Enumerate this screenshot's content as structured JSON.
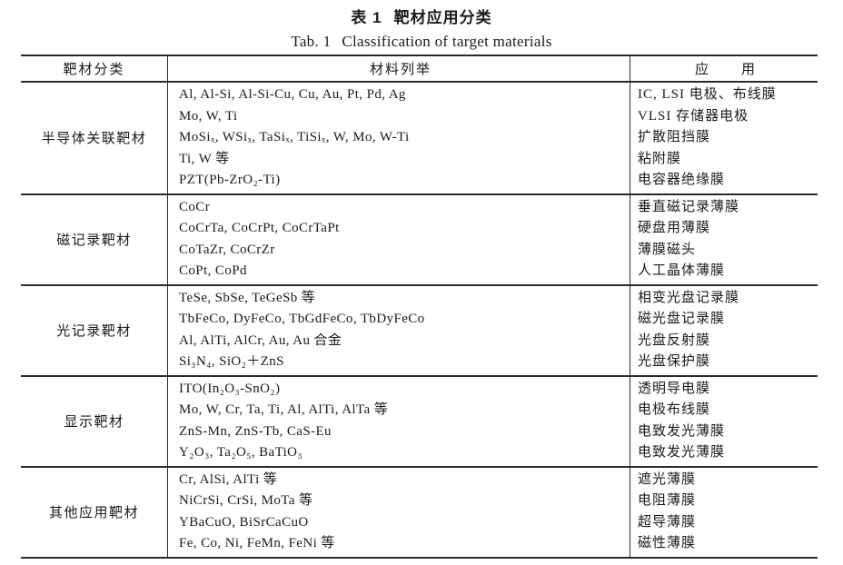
{
  "title": {
    "zh_label": "表 1",
    "zh_text": "靶材应用分类",
    "en_label": "Tab. 1",
    "en_text": "Classification of target materials"
  },
  "table": {
    "headers": {
      "category": "靶材分类",
      "materials": "材料列举",
      "application": "应　　用"
    },
    "sections": [
      {
        "category": "半导体关联靶材",
        "materials": [
          "Al, Al-Si, Al-Si-Cu, Cu, Au, Pt, Pd, Ag",
          "Mo, W, Ti",
          "MoSiₓ, WSiₓ, TaSiₓ, TiSiₓ, W, Mo, W-Ti",
          "Ti, W 等",
          "PZT(Pb-ZrO₂-Ti)"
        ],
        "applications": [
          "IC, LSI 电极、布线膜",
          "VLSI 存储器电极",
          "扩散阻挡膜",
          "粘附膜",
          "电容器绝缘膜"
        ]
      },
      {
        "category": "磁记录靶材",
        "materials": [
          "CoCr",
          "CoCrTa, CoCrPt, CoCrTaPt",
          "CoTaZr, CoCrZr",
          "CoPt, CoPd"
        ],
        "applications": [
          "垂直磁记录薄膜",
          "硬盘用薄膜",
          "薄膜磁头",
          "人工晶体薄膜"
        ]
      },
      {
        "category": "光记录靶材",
        "materials": [
          "TeSe, SbSe, TeGeSb 等",
          "TbFeCo, DyFeCo, TbGdFeCo, TbDyFeCo",
          "Al, AlTi, AlCr, Au, Au 合金",
          "Si₃N₄, SiO₂＋ZnS"
        ],
        "applications": [
          "相变光盘记录膜",
          "磁光盘记录膜",
          "光盘反射膜",
          "光盘保护膜"
        ]
      },
      {
        "category": "显示靶材",
        "materials": [
          "ITO(In₂O₃-SnO₂)",
          "Mo, W, Cr, Ta, Ti, Al, AlTi, AlTa 等",
          "ZnS-Mn, ZnS-Tb, CaS-Eu",
          "Y₂O₃, Ta₂O₅, BaTiO₃"
        ],
        "applications": [
          "透明导电膜",
          "电极布线膜",
          "电致发光薄膜",
          "电致发光薄膜"
        ]
      },
      {
        "category": "其他应用靶材",
        "materials": [
          "Cr, AlSi, AlTi 等",
          "NiCrSi, CrSi, MoTa 等",
          "YBaCuO, BiSrCaCuO",
          "Fe, Co, Ni, FeMn, FeNi 等"
        ],
        "applications": [
          "遮光薄膜",
          "电阻薄膜",
          "超导薄膜",
          "磁性薄膜"
        ]
      }
    ]
  }
}
